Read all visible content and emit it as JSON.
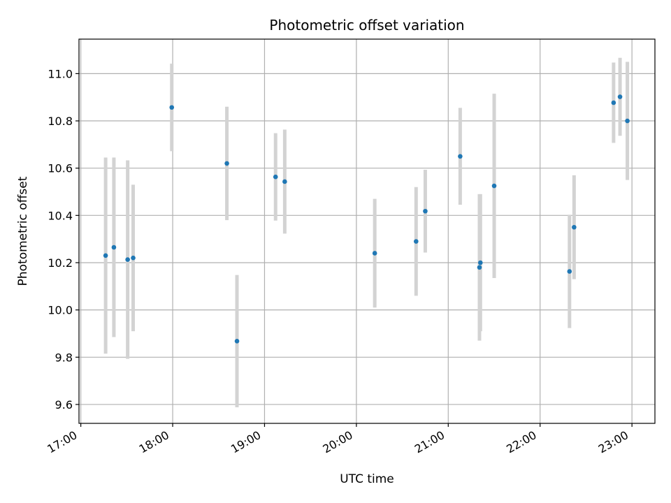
{
  "chart_data": {
    "type": "scatter",
    "title": "Photometric offset variation",
    "xlabel": "UTC time",
    "ylabel": "Photometric offset",
    "x_unit": "hours UTC",
    "xlim": [
      16.98,
      23.25
    ],
    "ylim": [
      9.52,
      11.146
    ],
    "x_ticks": [
      17,
      18,
      19,
      20,
      21,
      22,
      23
    ],
    "x_tick_labels": [
      "17:00",
      "18:00",
      "19:00",
      "20:00",
      "21:00",
      "22:00",
      "23:00"
    ],
    "y_ticks": [
      9.6,
      9.8,
      10.0,
      10.2,
      10.4,
      10.6,
      10.8,
      11.0
    ],
    "y_tick_labels": [
      "9.6",
      "9.8",
      "10.0",
      "10.2",
      "10.4",
      "10.6",
      "10.8",
      "11.0"
    ],
    "grid": true,
    "marker_color": "#1f77b4",
    "errorbar_color": "#d3d3d3",
    "points": [
      {
        "x": 17.27,
        "y": 10.23,
        "err": 0.415
      },
      {
        "x": 17.36,
        "y": 10.265,
        "err": 0.38
      },
      {
        "x": 17.51,
        "y": 10.213,
        "err": 0.42
      },
      {
        "x": 17.57,
        "y": 10.22,
        "err": 0.31
      },
      {
        "x": 17.99,
        "y": 10.857,
        "err": 0.185
      },
      {
        "x": 18.59,
        "y": 10.62,
        "err": 0.24
      },
      {
        "x": 18.7,
        "y": 9.868,
        "err": 0.28
      },
      {
        "x": 19.12,
        "y": 10.563,
        "err": 0.185
      },
      {
        "x": 19.22,
        "y": 10.543,
        "err": 0.22
      },
      {
        "x": 20.2,
        "y": 10.24,
        "err": 0.23
      },
      {
        "x": 20.65,
        "y": 10.29,
        "err": 0.23
      },
      {
        "x": 20.75,
        "y": 10.418,
        "err": 0.175
      },
      {
        "x": 21.13,
        "y": 10.65,
        "err": 0.205
      },
      {
        "x": 21.34,
        "y": 10.18,
        "err": 0.31
      },
      {
        "x": 21.35,
        "y": 10.2,
        "err": 0.29
      },
      {
        "x": 21.5,
        "y": 10.525,
        "err": 0.39
      },
      {
        "x": 22.32,
        "y": 10.163,
        "err": 0.24
      },
      {
        "x": 22.37,
        "y": 10.35,
        "err": 0.22
      },
      {
        "x": 22.8,
        "y": 10.877,
        "err": 0.17
      },
      {
        "x": 22.87,
        "y": 10.902,
        "err": 0.165
      },
      {
        "x": 22.95,
        "y": 10.8,
        "err": 0.25
      }
    ]
  }
}
